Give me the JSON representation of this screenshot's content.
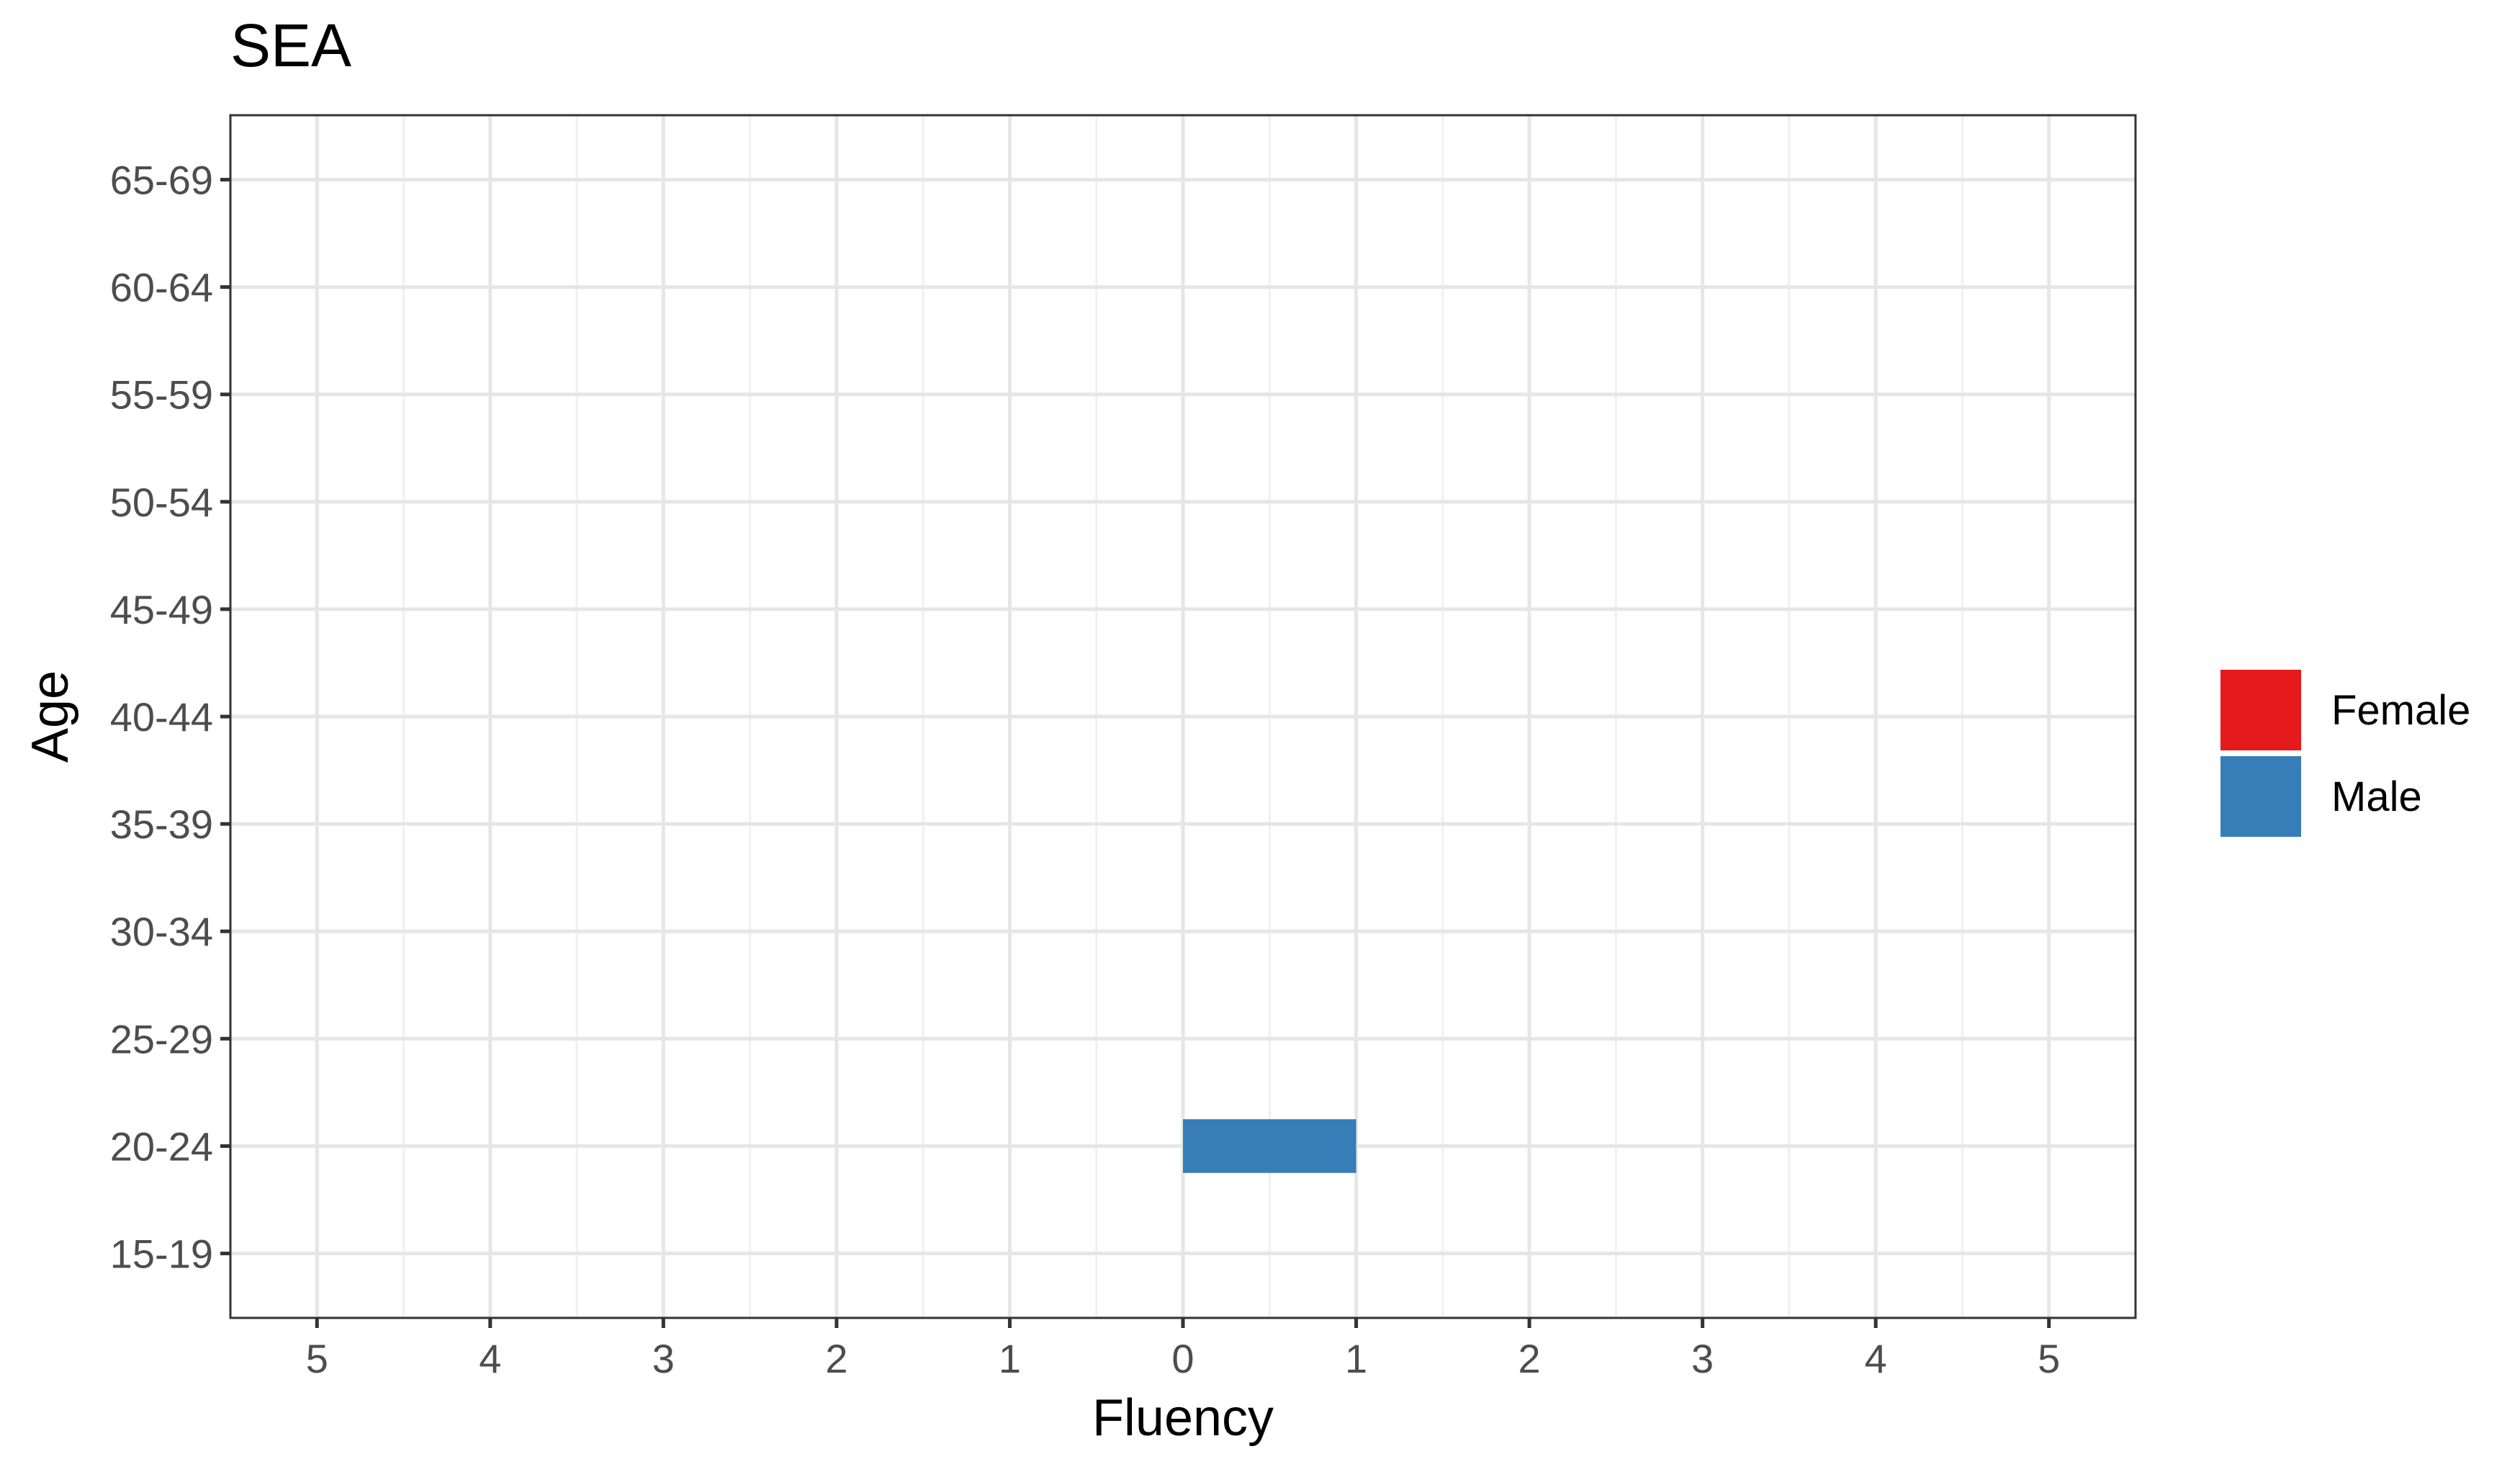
{
  "chart_data": {
    "type": "bar",
    "orientation": "horizontal",
    "title": "SEA",
    "xlabel": "Fluency",
    "ylabel": "Age",
    "x_ticks": [
      -5,
      -4,
      -3,
      -2,
      -1,
      0,
      1,
      2,
      3,
      4,
      5
    ],
    "x_tick_labels": [
      "5",
      "4",
      "3",
      "2",
      "1",
      "0",
      "1",
      "2",
      "3",
      "4",
      "5"
    ],
    "xlim": [
      -5.5,
      5.5
    ],
    "categories": [
      "15-19",
      "20-24",
      "25-29",
      "30-34",
      "35-39",
      "40-44",
      "45-49",
      "50-54",
      "55-59",
      "60-64",
      "65-69"
    ],
    "series": [
      {
        "name": "Female",
        "color": "#E41A1C",
        "direction": "left",
        "values": [
          0,
          0,
          0,
          0,
          0,
          0,
          0,
          0,
          0,
          0,
          0
        ]
      },
      {
        "name": "Male",
        "color": "#377EB8",
        "direction": "right",
        "values": [
          0,
          1,
          0,
          0,
          0,
          0,
          0,
          0,
          0,
          0,
          0
        ]
      }
    ],
    "grid": true,
    "legend": "right"
  }
}
